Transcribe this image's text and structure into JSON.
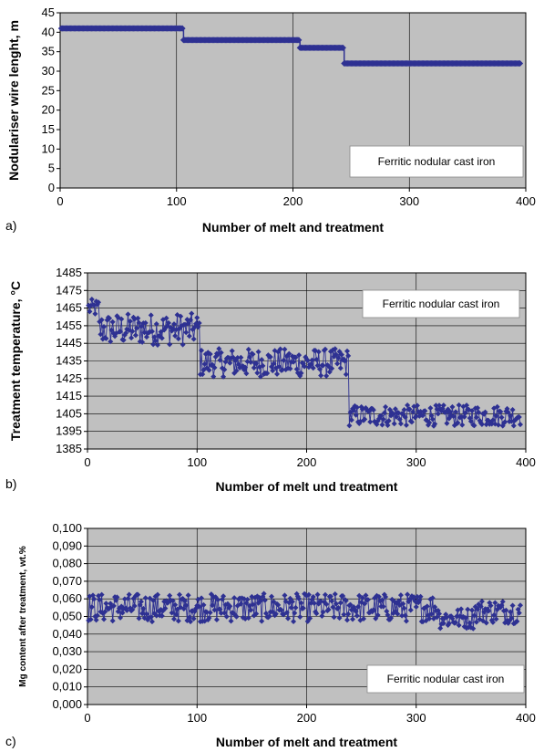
{
  "chart_data": [
    {
      "type": "scatter",
      "panel_label": "a)",
      "xlabel": "Number of melt and treatment",
      "ylabel": "Nodulariser wire lenght, m",
      "annotation": "Ferritic nodular cast iron",
      "xlim": [
        0,
        400
      ],
      "ylim": [
        0,
        45
      ],
      "xticks": [
        "0",
        "100",
        "200",
        "300",
        "400"
      ],
      "yticks": [
        "0",
        "5",
        "10",
        "15",
        "20",
        "25",
        "30",
        "35",
        "40",
        "45"
      ],
      "grid": "vertical",
      "series_color": "#2e3192",
      "segments": [
        {
          "x_start": 1,
          "x_end": 105,
          "y": 41
        },
        {
          "x_start": 106,
          "x_end": 205,
          "y": 38
        },
        {
          "x_start": 206,
          "x_end": 243,
          "y": 36
        },
        {
          "x_start": 244,
          "x_end": 395,
          "y": 32
        }
      ]
    },
    {
      "type": "line",
      "panel_label": "b)",
      "xlabel": "Number of melt und treatment",
      "ylabel": "Treatment temperature, °C",
      "annotation": "Ferritic nodular cast iron",
      "xlim": [
        0,
        400
      ],
      "ylim": [
        1385,
        1485
      ],
      "xticks": [
        "0",
        "100",
        "200",
        "300",
        "400"
      ],
      "yticks": [
        "1385",
        "1395",
        "1405",
        "1415",
        "1425",
        "1435",
        "1445",
        "1455",
        "1465",
        "1475",
        "1485"
      ],
      "grid": "both",
      "series_color": "#2e3192",
      "segments": [
        {
          "x_start": 1,
          "x_end": 10,
          "mean": 1465,
          "amp": 5
        },
        {
          "x_start": 11,
          "x_end": 102,
          "mean": 1453,
          "amp": 9
        },
        {
          "x_start": 103,
          "x_end": 238,
          "mean": 1434,
          "amp": 8
        },
        {
          "x_start": 239,
          "x_end": 395,
          "mean": 1404,
          "amp": 6
        }
      ]
    },
    {
      "type": "line",
      "panel_label": "c)",
      "xlabel": "Number of melt and treatment",
      "ylabel": "Mg content after treatment, wt.%",
      "annotation": "Ferritic nodular cast iron",
      "xlim": [
        0,
        400
      ],
      "ylim": [
        0,
        0.1
      ],
      "xticks": [
        "0",
        "100",
        "200",
        "300",
        "400"
      ],
      "yticks": [
        "0,000",
        "0,010",
        "0,020",
        "0,030",
        "0,040",
        "0,050",
        "0,060",
        "0,070",
        "0,080",
        "0,090",
        "0,100"
      ],
      "grid": "both",
      "series_color": "#2e3192",
      "segments": [
        {
          "x_start": 1,
          "x_end": 320,
          "mean": 0.055,
          "amp": 0.008
        },
        {
          "x_start": 321,
          "x_end": 352,
          "mean": 0.049,
          "amp": 0.006
        },
        {
          "x_start": 353,
          "x_end": 395,
          "mean": 0.053,
          "amp": 0.007
        }
      ]
    }
  ]
}
